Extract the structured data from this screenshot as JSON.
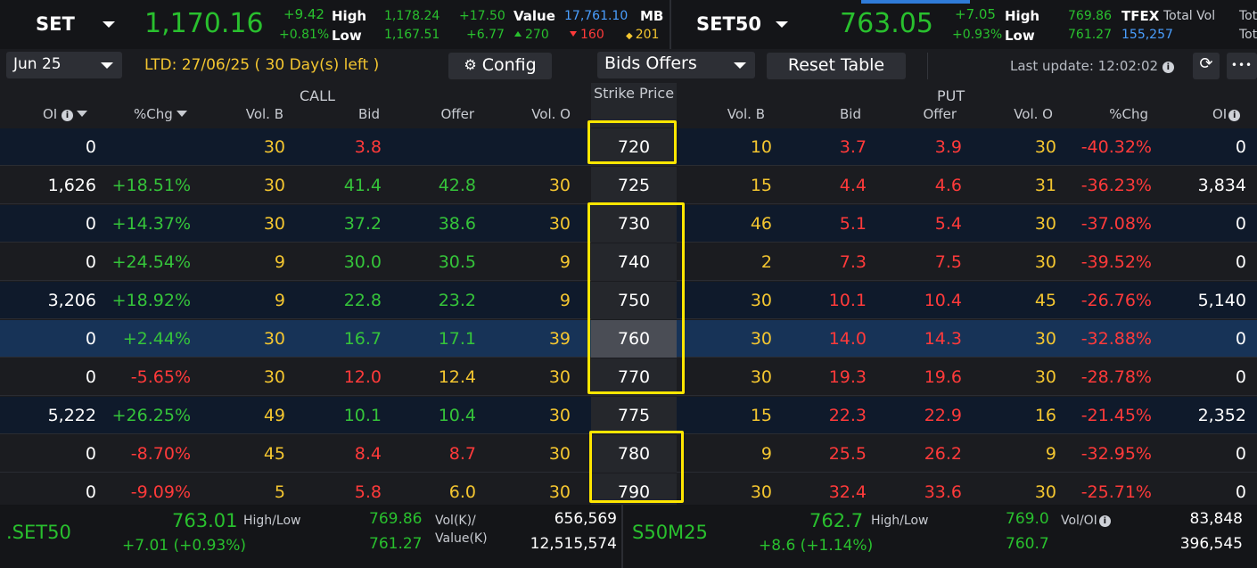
{
  "topbar": {
    "set": {
      "name": "SET",
      "price": "1,170.16",
      "chg": "+9.42",
      "chg_pct": "+0.81%",
      "high_label": "High",
      "low_label": "Low",
      "high": "1,178.24",
      "low": "1,167.51",
      "high_diff": "+17.50",
      "low_diff": "+6.77",
      "value_label": "Value",
      "value": "17,761.10",
      "value_unit": "MB",
      "adv": "270",
      "dec": "160",
      "unch": "201"
    },
    "set50": {
      "name": "SET50",
      "price": "763.05",
      "chg": "+7.05",
      "chg_pct": "+0.93%",
      "high_label": "High",
      "low_label": "Low",
      "high": "769.86",
      "low": "761.27"
    },
    "tfex": {
      "label": "TFEX",
      "total_vol_label": "Total Vol",
      "total_vol": "155,257",
      "cut_top": "Tot",
      "cut_bottom": "Tot"
    }
  },
  "toolbar": {
    "series": "Jun 25",
    "ltd": "LTD: 27/06/25 ( 30 Day(s) left )",
    "config_label": "Config",
    "view": "Bids Offers",
    "reset_label": "Reset Table",
    "last_update": "Last update: 12:02:02",
    "more": "•••"
  },
  "header": {
    "call_label": "CALL",
    "put_label": "PUT",
    "strike_label": "Strike Price",
    "call_cols": {
      "oi": "OI",
      "pchg": "%Chg",
      "volb": "Vol. B",
      "bid": "Bid",
      "offer": "Offer",
      "volo": "Vol. O"
    },
    "put_cols": {
      "volb": "Vol. B",
      "bid": "Bid",
      "offer": "Offer",
      "volo": "Vol. O",
      "pchg": "%Chg",
      "oi": "OI"
    }
  },
  "rows": [
    {
      "strike": "720",
      "c_oi": "0",
      "c_pchg": "",
      "c_volb": "30",
      "c_bid": "3.8",
      "c_offer": "",
      "c_volo": "",
      "p_volb": "10",
      "p_bid": "3.7",
      "p_offer": "3.9",
      "p_volo": "30",
      "p_pchg": "-40.32%",
      "p_oi": "0"
    },
    {
      "strike": "725",
      "c_oi": "1,626",
      "c_pchg": "+18.51%",
      "c_volb": "30",
      "c_bid": "41.4",
      "c_offer": "42.8",
      "c_volo": "30",
      "p_volb": "15",
      "p_bid": "4.4",
      "p_offer": "4.6",
      "p_volo": "31",
      "p_pchg": "-36.23%",
      "p_oi": "3,834"
    },
    {
      "strike": "730",
      "c_oi": "0",
      "c_pchg": "+14.37%",
      "c_volb": "30",
      "c_bid": "37.2",
      "c_offer": "38.6",
      "c_volo": "30",
      "p_volb": "46",
      "p_bid": "5.1",
      "p_offer": "5.4",
      "p_volo": "30",
      "p_pchg": "-37.08%",
      "p_oi": "0"
    },
    {
      "strike": "740",
      "c_oi": "0",
      "c_pchg": "+24.54%",
      "c_volb": "9",
      "c_bid": "30.0",
      "c_offer": "30.5",
      "c_volo": "9",
      "p_volb": "2",
      "p_bid": "7.3",
      "p_offer": "7.5",
      "p_volo": "30",
      "p_pchg": "-39.52%",
      "p_oi": "0"
    },
    {
      "strike": "750",
      "c_oi": "3,206",
      "c_pchg": "+18.92%",
      "c_volb": "9",
      "c_bid": "22.8",
      "c_offer": "23.2",
      "c_volo": "9",
      "p_volb": "30",
      "p_bid": "10.1",
      "p_offer": "10.4",
      "p_volo": "45",
      "p_pchg": "-26.76%",
      "p_oi": "5,140"
    },
    {
      "strike": "760",
      "c_oi": "0",
      "c_pchg": "+2.44%",
      "c_volb": "30",
      "c_bid": "16.7",
      "c_offer": "17.1",
      "c_volo": "39",
      "p_volb": "30",
      "p_bid": "14.0",
      "p_offer": "14.3",
      "p_volo": "30",
      "p_pchg": "-32.88%",
      "p_oi": "0"
    },
    {
      "strike": "770",
      "c_oi": "0",
      "c_pchg": "-5.65%",
      "c_volb": "30",
      "c_bid": "12.0",
      "c_offer": "12.4",
      "c_volo": "30",
      "p_volb": "30",
      "p_bid": "19.3",
      "p_offer": "19.6",
      "p_volo": "30",
      "p_pchg": "-28.78%",
      "p_oi": "0"
    },
    {
      "strike": "775",
      "c_oi": "5,222",
      "c_pchg": "+26.25%",
      "c_volb": "49",
      "c_bid": "10.1",
      "c_offer": "10.4",
      "c_volo": "30",
      "p_volb": "15",
      "p_bid": "22.3",
      "p_offer": "22.9",
      "p_volo": "16",
      "p_pchg": "-21.45%",
      "p_oi": "2,352"
    },
    {
      "strike": "780",
      "c_oi": "0",
      "c_pchg": "-8.70%",
      "c_volb": "45",
      "c_bid": "8.4",
      "c_offer": "8.7",
      "c_volo": "30",
      "p_volb": "9",
      "p_bid": "25.5",
      "p_offer": "26.2",
      "p_volo": "9",
      "p_pchg": "-32.95%",
      "p_oi": "0"
    },
    {
      "strike": "790",
      "c_oi": "0",
      "c_pchg": "-9.09%",
      "c_volb": "5",
      "c_bid": "5.8",
      "c_offer": "6.0",
      "c_volo": "30",
      "p_volb": "30",
      "p_bid": "32.4",
      "p_offer": "33.6",
      "p_volo": "30",
      "p_pchg": "-25.71%",
      "p_oi": "0"
    }
  ],
  "footer": {
    "left": {
      "symbol": ".SET50",
      "price": "763.01",
      "chg": "+7.01 (+0.93%)",
      "hl_label": "High/Low",
      "high": "769.86",
      "low": "761.27",
      "vol_label": "Vol(K)/",
      "val_label": "Value(K)",
      "vol": "656,569",
      "val": "12,515,574"
    },
    "right": {
      "symbol": "S50M25",
      "price": "762.7",
      "chg": "+8.6 (+1.14%)",
      "hl_label": "High/Low",
      "high": "769.0",
      "low": "760.7",
      "voloi_label": "Vol/OI",
      "vol": "83,848",
      "oi": "396,545"
    }
  },
  "colors": {
    "up": "#29c02e",
    "down": "#ff3a3a",
    "volume": "#f4c630",
    "value_blue": "#4a9fff",
    "highlight_border": "#ffe600",
    "atm_row": "#173357",
    "panel_dark": "#0f1a2b",
    "bg": "#1b1c20"
  },
  "icons": {
    "dropdown": "chevron-down-icon",
    "config": "gear-icon",
    "info": "info-icon",
    "refresh": "refresh-icon",
    "more": "more-icon"
  }
}
